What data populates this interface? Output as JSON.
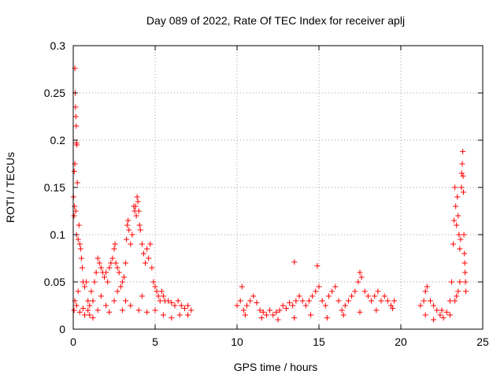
{
  "chart_data": {
    "type": "scatter",
    "title": "Day 089 of 2022, Rate Of TEC Index for receiver aplj",
    "xlabel": "GPS time / hours",
    "ylabel": "ROTI / TECUs",
    "xlim": [
      0,
      25
    ],
    "ylim": [
      0,
      0.3
    ],
    "xticks": [
      0,
      5,
      10,
      15,
      20,
      25
    ],
    "yticks": [
      0,
      0.05,
      0.1,
      0.15,
      0.2,
      0.25,
      0.3
    ],
    "xtick_labels": [
      "0",
      "5",
      "10",
      "15",
      "20",
      "25"
    ],
    "ytick_labels": [
      "0",
      "0.05",
      "0.1",
      "0.15",
      "0.2",
      "0.25",
      "0.3"
    ],
    "grid": true,
    "marker": "+",
    "color": "#ff0000",
    "series": [
      {
        "name": "ROTI",
        "points": [
          [
            0.02,
            0.14
          ],
          [
            0.05,
            0.12
          ],
          [
            0.08,
            0.13
          ],
          [
            0.1,
            0.276
          ],
          [
            0.12,
            0.25
          ],
          [
            0.14,
            0.235
          ],
          [
            0.16,
            0.225
          ],
          [
            0.18,
            0.215
          ],
          [
            0.2,
            0.197
          ],
          [
            0.22,
            0.195
          ],
          [
            0.1,
            0.175
          ],
          [
            0.06,
            0.167
          ],
          [
            0.25,
            0.155
          ],
          [
            0.15,
            0.125
          ],
          [
            0.2,
            0.1
          ],
          [
            0.3,
            0.095
          ],
          [
            0.35,
            0.11
          ],
          [
            0.4,
            0.09
          ],
          [
            0.45,
            0.085
          ],
          [
            0.5,
            0.075
          ],
          [
            0.55,
            0.065
          ],
          [
            0.6,
            0.05
          ],
          [
            0.7,
            0.045
          ],
          [
            0.8,
            0.05
          ],
          [
            0.3,
            0.04
          ],
          [
            0.1,
            0.03
          ],
          [
            0.05,
            0.02
          ],
          [
            0.2,
            0.025
          ],
          [
            0.4,
            0.018
          ],
          [
            0.6,
            0.022
          ],
          [
            0.9,
            0.03
          ],
          [
            1.0,
            0.025
          ],
          [
            1.1,
            0.04
          ],
          [
            1.2,
            0.03
          ],
          [
            1.3,
            0.05
          ],
          [
            1.4,
            0.06
          ],
          [
            1.5,
            0.075
          ],
          [
            1.6,
            0.07
          ],
          [
            1.7,
            0.065
          ],
          [
            1.8,
            0.06
          ],
          [
            1.9,
            0.055
          ],
          [
            2.0,
            0.06
          ],
          [
            2.1,
            0.05
          ],
          [
            2.2,
            0.065
          ],
          [
            2.3,
            0.07
          ],
          [
            2.4,
            0.075
          ],
          [
            2.5,
            0.085
          ],
          [
            2.55,
            0.09
          ],
          [
            2.6,
            0.07
          ],
          [
            2.7,
            0.065
          ],
          [
            2.8,
            0.06
          ],
          [
            2.9,
            0.045
          ],
          [
            3.0,
            0.05
          ],
          [
            3.1,
            0.055
          ],
          [
            3.2,
            0.07
          ],
          [
            3.25,
            0.095
          ],
          [
            3.3,
            0.11
          ],
          [
            3.35,
            0.115
          ],
          [
            3.4,
            0.105
          ],
          [
            3.5,
            0.09
          ],
          [
            3.6,
            0.1
          ],
          [
            3.7,
            0.13
          ],
          [
            3.75,
            0.125
          ],
          [
            3.8,
            0.13
          ],
          [
            3.85,
            0.12
          ],
          [
            3.9,
            0.14
          ],
          [
            3.95,
            0.135
          ],
          [
            4.0,
            0.125
          ],
          [
            4.05,
            0.11
          ],
          [
            4.1,
            0.105
          ],
          [
            4.2,
            0.09
          ],
          [
            4.3,
            0.08
          ],
          [
            4.4,
            0.07
          ],
          [
            4.5,
            0.085
          ],
          [
            4.6,
            0.075
          ],
          [
            4.7,
            0.09
          ],
          [
            4.8,
            0.065
          ],
          [
            4.9,
            0.05
          ],
          [
            5.0,
            0.045
          ],
          [
            5.1,
            0.04
          ],
          [
            5.2,
            0.035
          ],
          [
            5.3,
            0.03
          ],
          [
            5.4,
            0.04
          ],
          [
            5.5,
            0.035
          ],
          [
            5.6,
            0.03
          ],
          [
            5.8,
            0.03
          ],
          [
            6.0,
            0.028
          ],
          [
            6.2,
            0.025
          ],
          [
            6.4,
            0.03
          ],
          [
            6.6,
            0.025
          ],
          [
            6.8,
            0.022
          ],
          [
            7.0,
            0.025
          ],
          [
            7.2,
            0.02
          ],
          [
            1.0,
            0.015
          ],
          [
            1.5,
            0.02
          ],
          [
            2.0,
            0.025
          ],
          [
            2.5,
            0.03
          ],
          [
            3.0,
            0.02
          ],
          [
            3.5,
            0.025
          ],
          [
            4.0,
            0.02
          ],
          [
            4.5,
            0.018
          ],
          [
            5.0,
            0.02
          ],
          [
            5.5,
            0.015
          ],
          [
            6.0,
            0.012
          ],
          [
            6.5,
            0.015
          ],
          [
            7.0,
            0.015
          ],
          [
            1.2,
            0.012
          ],
          [
            2.2,
            0.018
          ],
          [
            3.2,
            0.03
          ],
          [
            4.2,
            0.035
          ],
          [
            1.7,
            0.035
          ],
          [
            2.7,
            0.04
          ],
          [
            0.7,
            0.015
          ],
          [
            0.9,
            0.02
          ],
          [
            10.0,
            0.025
          ],
          [
            10.2,
            0.03
          ],
          [
            10.3,
            0.045
          ],
          [
            10.4,
            0.02
          ],
          [
            10.6,
            0.025
          ],
          [
            10.8,
            0.03
          ],
          [
            11.0,
            0.035
          ],
          [
            11.2,
            0.028
          ],
          [
            11.4,
            0.02
          ],
          [
            11.6,
            0.018
          ],
          [
            11.8,
            0.015
          ],
          [
            12.0,
            0.02
          ],
          [
            12.2,
            0.015
          ],
          [
            12.4,
            0.018
          ],
          [
            12.6,
            0.02
          ],
          [
            12.8,
            0.025
          ],
          [
            13.0,
            0.022
          ],
          [
            13.2,
            0.028
          ],
          [
            13.4,
            0.025
          ],
          [
            13.5,
            0.071
          ],
          [
            13.6,
            0.03
          ],
          [
            13.8,
            0.035
          ],
          [
            14.0,
            0.03
          ],
          [
            14.2,
            0.025
          ],
          [
            14.4,
            0.03
          ],
          [
            14.6,
            0.035
          ],
          [
            14.8,
            0.04
          ],
          [
            14.9,
            0.067
          ],
          [
            15.0,
            0.045
          ],
          [
            15.2,
            0.03
          ],
          [
            15.4,
            0.025
          ],
          [
            15.6,
            0.035
          ],
          [
            15.8,
            0.04
          ],
          [
            16.0,
            0.045
          ],
          [
            16.2,
            0.03
          ],
          [
            16.4,
            0.02
          ],
          [
            16.6,
            0.025
          ],
          [
            16.8,
            0.03
          ],
          [
            17.0,
            0.035
          ],
          [
            17.2,
            0.04
          ],
          [
            17.4,
            0.05
          ],
          [
            17.5,
            0.06
          ],
          [
            17.6,
            0.055
          ],
          [
            17.8,
            0.04
          ],
          [
            18.0,
            0.035
          ],
          [
            18.2,
            0.03
          ],
          [
            18.4,
            0.035
          ],
          [
            18.6,
            0.04
          ],
          [
            18.8,
            0.03
          ],
          [
            19.0,
            0.035
          ],
          [
            19.2,
            0.03
          ],
          [
            19.4,
            0.025
          ],
          [
            19.6,
            0.03
          ],
          [
            10.5,
            0.015
          ],
          [
            11.5,
            0.012
          ],
          [
            12.5,
            0.01
          ],
          [
            13.5,
            0.012
          ],
          [
            14.5,
            0.015
          ],
          [
            15.5,
            0.012
          ],
          [
            16.5,
            0.015
          ],
          [
            17.5,
            0.018
          ],
          [
            18.5,
            0.02
          ],
          [
            19.5,
            0.022
          ],
          [
            21.2,
            0.025
          ],
          [
            21.4,
            0.03
          ],
          [
            21.5,
            0.04
          ],
          [
            21.6,
            0.045
          ],
          [
            21.8,
            0.03
          ],
          [
            22.0,
            0.025
          ],
          [
            22.2,
            0.02
          ],
          [
            22.4,
            0.015
          ],
          [
            22.6,
            0.012
          ],
          [
            22.8,
            0.018
          ],
          [
            23.0,
            0.03
          ],
          [
            23.1,
            0.05
          ],
          [
            23.2,
            0.09
          ],
          [
            23.25,
            0.115
          ],
          [
            23.3,
            0.15
          ],
          [
            23.35,
            0.13
          ],
          [
            23.4,
            0.11
          ],
          [
            23.45,
            0.14
          ],
          [
            23.5,
            0.12
          ],
          [
            23.55,
            0.1
          ],
          [
            23.6,
            0.085
          ],
          [
            23.65,
            0.095
          ],
          [
            23.7,
            0.15
          ],
          [
            23.72,
            0.165
          ],
          [
            23.75,
            0.175
          ],
          [
            23.78,
            0.188
          ],
          [
            23.8,
            0.162
          ],
          [
            23.82,
            0.145
          ],
          [
            23.85,
            0.1
          ],
          [
            23.88,
            0.08
          ],
          [
            23.9,
            0.07
          ],
          [
            23.92,
            0.06
          ],
          [
            23.95,
            0.05
          ],
          [
            23.97,
            0.04
          ],
          [
            23.6,
            0.05
          ],
          [
            23.5,
            0.04
          ],
          [
            23.4,
            0.035
          ],
          [
            23.3,
            0.03
          ],
          [
            21.5,
            0.015
          ],
          [
            22.0,
            0.01
          ],
          [
            22.5,
            0.02
          ],
          [
            23.0,
            0.015
          ]
        ]
      }
    ]
  }
}
